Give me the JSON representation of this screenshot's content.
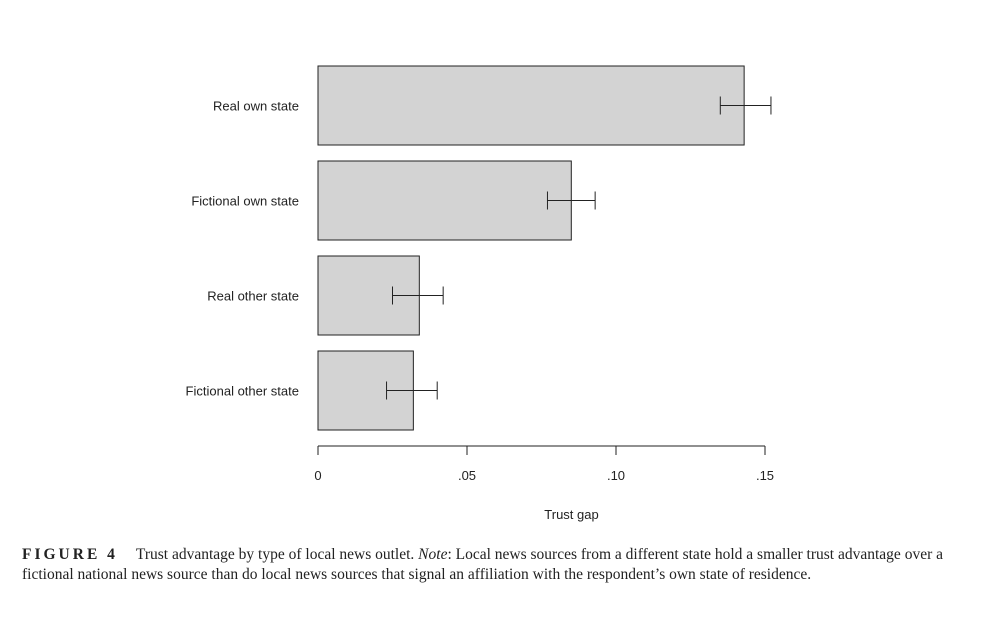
{
  "chart_data": {
    "type": "bar",
    "orientation": "horizontal",
    "categories": [
      "Real own state",
      "Fictional own state",
      "Real other state",
      "Fictional other state"
    ],
    "values": [
      0.143,
      0.085,
      0.034,
      0.032
    ],
    "error_low": [
      0.135,
      0.077,
      0.025,
      0.023
    ],
    "error_high": [
      0.152,
      0.093,
      0.042,
      0.04
    ],
    "xlabel": "Trust gap",
    "xlim": [
      0,
      0.15
    ],
    "xticks": [
      0,
      0.05,
      0.1,
      0.15
    ],
    "xtick_labels": [
      "0",
      ".05",
      ".10",
      ".15"
    ],
    "grid": false,
    "colors": {
      "bar_fill": "#d3d3d3",
      "bar_stroke": "#222222"
    }
  },
  "caption": {
    "label": "FIGURE 4",
    "text_before_note": "Trust advantage by type of local news outlet. ",
    "note_label": "Note",
    "text_after_note": ": Local news sources from a different state hold a smaller trust advantage over a fictional national news source than do local news sources that signal an affiliation with the respondent’s own state of residence."
  }
}
